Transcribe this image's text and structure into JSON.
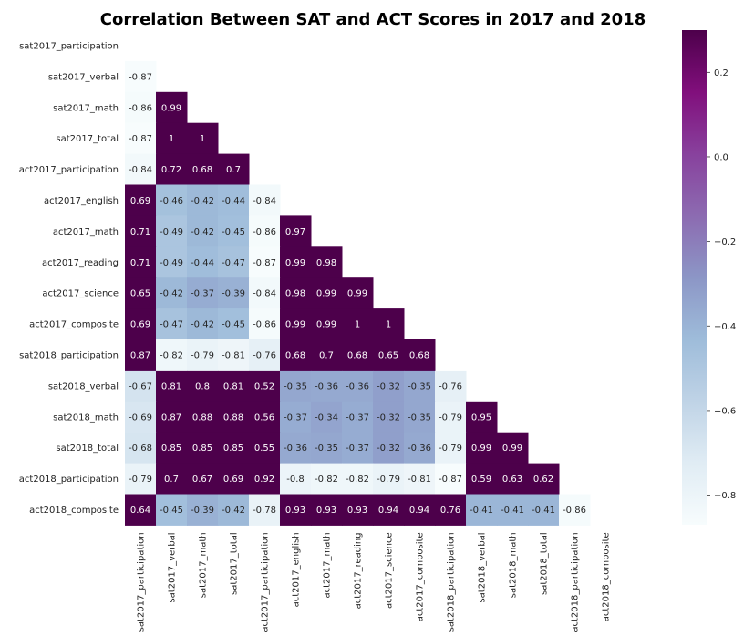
{
  "chart_data": {
    "type": "heatmap",
    "title": "Correlation Between SAT and ACT Scores in 2017 and 2018",
    "labels": [
      "sat2017_participation",
      "sat2017_verbal",
      "sat2017_math",
      "sat2017_total",
      "act2017_participation",
      "act2017_english",
      "act2017_math",
      "act2017_reading",
      "act2017_science",
      "act2017_composite",
      "sat2018_participation",
      "sat2018_verbal",
      "sat2018_math",
      "sat2018_total",
      "act2018_participation",
      "act2018_composite"
    ],
    "display_labels": [
      [],
      [
        "-0.87"
      ],
      [
        "-0.86",
        "0.99"
      ],
      [
        "-0.87",
        "1",
        "1"
      ],
      [
        "-0.84",
        "0.72",
        "0.68",
        "0.7"
      ],
      [
        "0.69",
        "-0.46",
        "-0.42",
        "-0.44",
        "-0.84"
      ],
      [
        "0.71",
        "-0.49",
        "-0.42",
        "-0.45",
        "-0.86",
        "0.97"
      ],
      [
        "0.71",
        "-0.49",
        "-0.44",
        "-0.47",
        "-0.87",
        "0.99",
        "0.98"
      ],
      [
        "0.65",
        "-0.42",
        "-0.37",
        "-0.39",
        "-0.84",
        "0.98",
        "0.99",
        "0.99"
      ],
      [
        "0.69",
        "-0.47",
        "-0.42",
        "-0.45",
        "-0.86",
        "0.99",
        "0.99",
        "1",
        "1"
      ],
      [
        "0.87",
        "-0.82",
        "-0.79",
        "-0.81",
        "-0.76",
        "0.68",
        "0.7",
        "0.68",
        "0.65",
        "0.68"
      ],
      [
        "-0.67",
        "0.81",
        "0.8",
        "0.81",
        "0.52",
        "-0.35",
        "-0.36",
        "-0.36",
        "-0.32",
        "-0.35",
        "-0.76"
      ],
      [
        "-0.69",
        "0.87",
        "0.88",
        "0.88",
        "0.56",
        "-0.37",
        "-0.34",
        "-0.37",
        "-0.32",
        "-0.35",
        "-0.79",
        "0.95"
      ],
      [
        "-0.68",
        "0.85",
        "0.85",
        "0.85",
        "0.55",
        "-0.36",
        "-0.35",
        "-0.37",
        "-0.32",
        "-0.36",
        "-0.79",
        "0.99",
        "0.99"
      ],
      [
        "-0.79",
        "0.7",
        "0.67",
        "0.69",
        "0.92",
        "-0.8",
        "-0.82",
        "-0.82",
        "-0.79",
        "-0.81",
        "-0.87",
        "0.59",
        "0.63",
        "0.62"
      ],
      [
        "0.64",
        "-0.45",
        "-0.39",
        "-0.42",
        "-0.78",
        "0.93",
        "0.93",
        "0.93",
        "0.94",
        "0.94",
        "0.76",
        "-0.41",
        "-0.41",
        "-0.41",
        "-0.86"
      ]
    ],
    "colorbar": {
      "vmin": -0.87,
      "vmax": 0.3,
      "ticks": [
        0.2,
        0.0,
        -0.2,
        -0.4,
        -0.6,
        -0.8
      ],
      "tick_labels": [
        "0.2",
        "0.0",
        "−0.2",
        "−0.4",
        "−0.6",
        "−0.8"
      ],
      "colormap": "BuPu",
      "stops": [
        "#f7fcfd",
        "#e0ecf4",
        "#bfd3e6",
        "#9ebcda",
        "#8c96c6",
        "#8c6bb1",
        "#88419d",
        "#810f7c",
        "#4d004b"
      ]
    },
    "mask": "upper-triangle-including-diagonal",
    "xlabel": "",
    "ylabel": ""
  }
}
